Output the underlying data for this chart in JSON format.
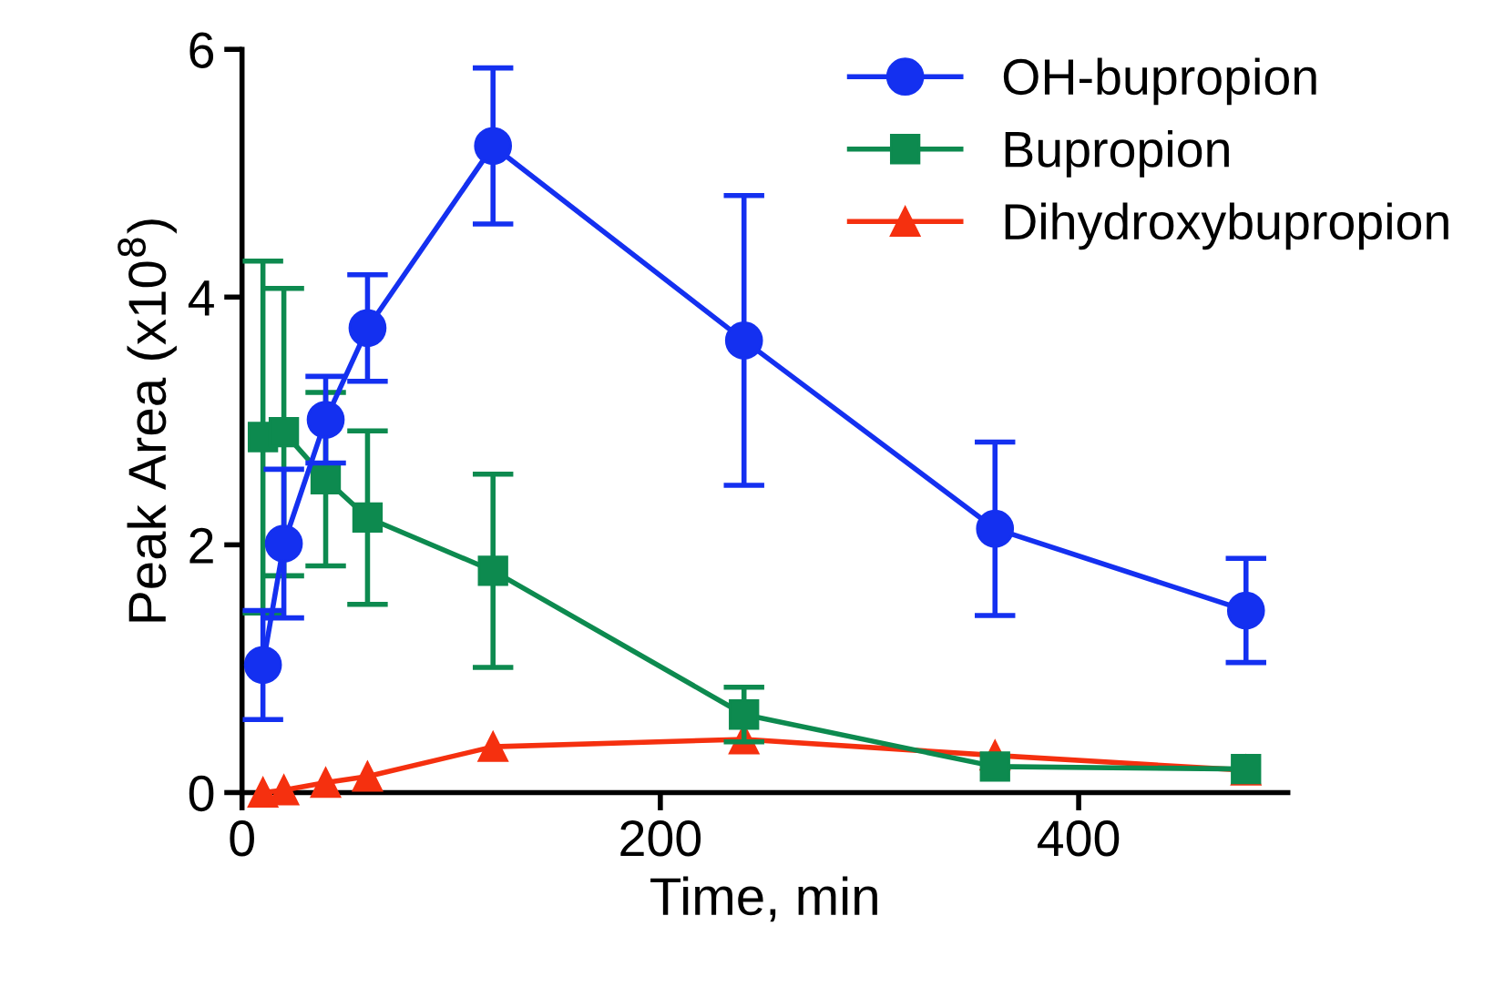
{
  "chart_data": {
    "type": "line",
    "xlabel": "Time, min",
    "ylabel": "Peak Area (x10$^{8}$)",
    "x": [
      10,
      20,
      40,
      60,
      120,
      240,
      360,
      480
    ],
    "series": [
      {
        "name": "OH-bupropion",
        "color": "#1430f0",
        "marker": "circle",
        "values": [
          1.03,
          2.01,
          3.01,
          3.75,
          5.22,
          3.65,
          2.13,
          1.47
        ],
        "errors": [
          0.44,
          0.6,
          0.35,
          0.43,
          0.63,
          1.17,
          0.7,
          0.42
        ]
      },
      {
        "name": "Bupropion",
        "color": "#0d8a4f",
        "marker": "square",
        "values": [
          2.87,
          2.91,
          2.53,
          2.22,
          1.79,
          0.63,
          0.21,
          0.19
        ],
        "errors": [
          1.42,
          1.16,
          0.7,
          0.7,
          0.78,
          0.22,
          null,
          null
        ]
      },
      {
        "name": "Dihydroxybupropion",
        "color": "#f5300f",
        "marker": "triangle",
        "values": [
          0.0,
          0.02,
          0.08,
          0.13,
          0.37,
          0.43,
          0.3,
          0.18
        ]
      }
    ],
    "xlim": [
      0,
      500
    ],
    "xticks": [
      0,
      200,
      400
    ],
    "ylim": [
      0,
      6
    ],
    "yticks": [
      0,
      2,
      4,
      6
    ],
    "grid": false,
    "legend": "top right"
  }
}
